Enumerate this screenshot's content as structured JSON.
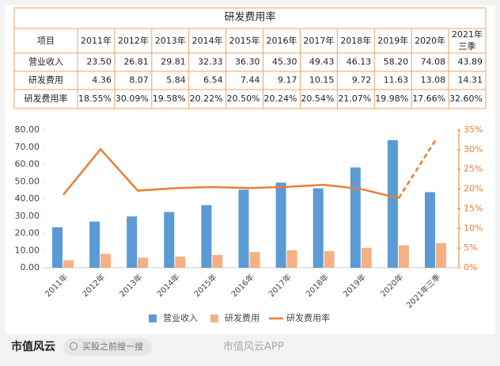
{
  "table": {
    "title": "研发费用率",
    "header": [
      "项目",
      "2011年",
      "2012年",
      "2013年",
      "2014年",
      "2015年",
      "2016年",
      "2017年",
      "2018年",
      "2019年",
      "2020年",
      [
        "2021年",
        "三季"
      ]
    ],
    "rows": [
      [
        "营业收入",
        "23.50",
        "26.81",
        "29.81",
        "32.33",
        "36.30",
        "45.30",
        "49.43",
        "46.13",
        "58.20",
        "74.08",
        "43.89"
      ],
      [
        "研发费用",
        "4.36",
        "8.07",
        "5.84",
        "6.54",
        "7.44",
        "9.17",
        "10.15",
        "9.72",
        "11.63",
        "13.08",
        "14.31"
      ],
      [
        "研发费用率",
        "18.55%",
        "30.09%",
        "19.58%",
        "20.22%",
        "20.50%",
        "20.24%",
        "20.54%",
        "21.07%",
        "19.98%",
        "17.66%",
        "32.60%"
      ]
    ]
  },
  "chart_data": {
    "type": "bar-line",
    "categories": [
      "2011年",
      "2012年",
      "2013年",
      "2014年",
      "2015年",
      "2016年",
      "2017年",
      "2018年",
      "2019年",
      "2020年",
      "2021年三季"
    ],
    "series": [
      {
        "name": "营业收入",
        "type": "bar",
        "color": "#5b9bd5",
        "values": [
          23.5,
          26.81,
          29.81,
          32.33,
          36.3,
          45.3,
          49.43,
          46.13,
          58.2,
          74.08,
          43.89
        ]
      },
      {
        "name": "研发费用",
        "type": "bar",
        "color": "#f4b183",
        "values": [
          4.36,
          8.07,
          5.84,
          6.54,
          7.44,
          9.17,
          10.15,
          9.72,
          11.63,
          13.08,
          14.31
        ]
      },
      {
        "name": "研发费用率",
        "type": "line",
        "axis": "y2",
        "color": "#ed7d31",
        "dashed_last_segment": true,
        "values": [
          18.55,
          30.09,
          19.58,
          20.22,
          20.5,
          20.24,
          20.54,
          21.07,
          19.98,
          17.66,
          32.6
        ]
      }
    ],
    "ylim": [
      0,
      80
    ],
    "yticks": [
      {
        "value": 0,
        "label": "0.00"
      },
      {
        "value": 10,
        "label": "10.00"
      },
      {
        "value": 20,
        "label": "20.00"
      },
      {
        "value": 30,
        "label": "30.00"
      },
      {
        "value": 40,
        "label": "40.00"
      },
      {
        "value": 50,
        "label": "50.00"
      },
      {
        "value": 60,
        "label": "60.00"
      },
      {
        "value": 70,
        "label": "70.00"
      },
      {
        "value": 80,
        "label": "80.00"
      }
    ],
    "y2lim": [
      0,
      35
    ],
    "y2ticks": [
      {
        "value": 0,
        "label": "0%"
      },
      {
        "value": 5,
        "label": "5%"
      },
      {
        "value": 10,
        "label": "10%"
      },
      {
        "value": 15,
        "label": "15%"
      },
      {
        "value": 20,
        "label": "20%"
      },
      {
        "value": 25,
        "label": "25%"
      },
      {
        "value": 30,
        "label": "30%"
      },
      {
        "value": 35,
        "label": "35%"
      }
    ],
    "y2_color": "#ed7d31"
  },
  "footer": {
    "brand": "市值风云",
    "search": "买股之前搜一搜",
    "watermark": "市值风云APP"
  }
}
